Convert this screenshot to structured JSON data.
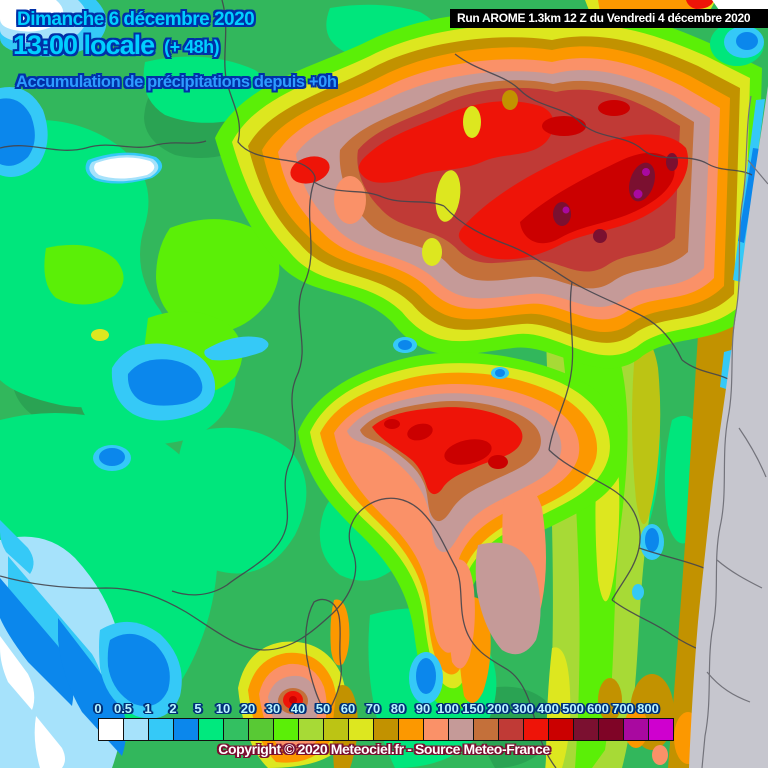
{
  "header": {
    "date": "Dimanche 6 décembre 2020",
    "time": "13:00 locale",
    "offset": "(+ 48h)",
    "subtitle": "Accumulation de précipitations depuis +0h"
  },
  "run_banner": "Run AROME 1.3km 12 Z du Vendredi 4 décembre 2020",
  "legend": {
    "tick_labels": [
      "0",
      "0.5",
      "1",
      "2",
      "5",
      "10",
      "20",
      "30",
      "40",
      "50",
      "60",
      "70",
      "80",
      "90",
      "100",
      "150",
      "200",
      "300",
      "400",
      "500",
      "600",
      "700",
      "800"
    ],
    "cell_colors": [
      "#ffffff",
      "#a6e2fb",
      "#35c9f7",
      "#0b87ec",
      "#00e97e",
      "#33c061",
      "#58c934",
      "#5bef07",
      "#a7da36",
      "#bcc414",
      "#dde71f",
      "#c29200",
      "#fc9800",
      "#fa9168",
      "#c59a98",
      "#c4703a",
      "#c03a36",
      "#ee1408",
      "#cb0000",
      "#7b1030",
      "#7f0426",
      "#a909a0",
      "#cf00cf"
    ]
  },
  "footer": {
    "copyright": "Copyright © 2020 Meteociel.fr - Source Meteo-France"
  },
  "colors": {
    "title_text": "#00cfff",
    "subtitle_text": "#2e9bff",
    "banner_bg": "#000000",
    "banner_text": "#ffffff",
    "out_of_domain": "#c6c6ce"
  }
}
